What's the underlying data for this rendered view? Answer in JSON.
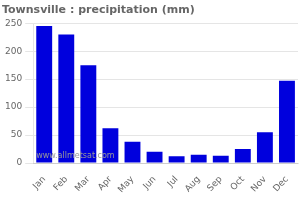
{
  "chart_data": {
    "type": "bar",
    "title": "Townsville : precipitation (mm)",
    "categories": [
      "Jan",
      "Feb",
      "Mar",
      "Apr",
      "May",
      "Jun",
      "Jul",
      "Aug",
      "Sep",
      "Oct",
      "Nov",
      "Dec"
    ],
    "values": [
      245,
      230,
      175,
      62,
      38,
      20,
      12,
      15,
      13,
      25,
      55,
      147
    ],
    "color": "#0000dd",
    "ylim": [
      0,
      250
    ],
    "yticks": [
      0,
      50,
      100,
      150,
      200,
      250
    ],
    "grid": true,
    "annotation": "www.allmetsat.com"
  }
}
